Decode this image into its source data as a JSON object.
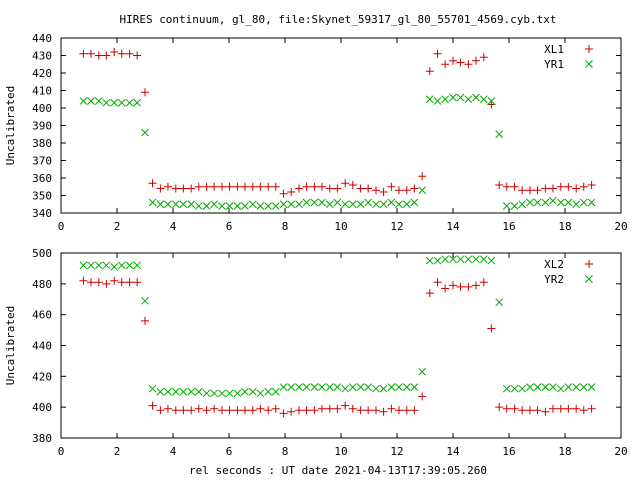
{
  "title": "HIRES continuum, gl_80, file:Skynet_59317_gl_80_55701_4569.cyb.txt",
  "xlabel": "rel seconds : UT date 2021-04-13T17:39:05.260",
  "colors": {
    "red": "#cc0000",
    "green": "#00aa00"
  },
  "chart_data": [
    {
      "type": "scatter",
      "title": "HIRES continuum, gl_80, file:Skynet_59317_gl_80_55701_4569.cyb.txt",
      "ylabel": "Uncalibrated",
      "xlim": [
        0,
        20
      ],
      "ylim": [
        340,
        440
      ],
      "xticks": [
        0,
        2,
        4,
        6,
        8,
        10,
        12,
        14,
        16,
        18,
        20
      ],
      "yticks": [
        340,
        350,
        360,
        370,
        380,
        390,
        400,
        410,
        420,
        430,
        440
      ],
      "legend_position": "top-right",
      "series": [
        {
          "name": "XL1",
          "marker": "+",
          "color": "#cc0000",
          "x": [
            0.8,
            1.07,
            1.35,
            1.62,
            1.9,
            2.17,
            2.45,
            2.72,
            3.0,
            3.27,
            3.55,
            3.82,
            4.1,
            4.37,
            4.65,
            4.92,
            5.2,
            5.47,
            5.75,
            6.02,
            6.3,
            6.57,
            6.85,
            7.12,
            7.4,
            7.67,
            7.95,
            8.22,
            8.5,
            8.77,
            9.05,
            9.32,
            9.6,
            9.87,
            10.15,
            10.42,
            10.7,
            10.97,
            11.25,
            11.52,
            11.8,
            12.07,
            12.35,
            12.62,
            12.9,
            13.17,
            13.45,
            13.72,
            14.0,
            14.27,
            14.55,
            14.82,
            15.1,
            15.37,
            15.65,
            15.92,
            16.2,
            16.47,
            16.75,
            17.02,
            17.3,
            17.57,
            17.85,
            18.12,
            18.4,
            18.67,
            18.95
          ],
          "y": [
            431,
            431,
            430,
            430,
            432,
            431,
            431,
            430,
            409,
            357,
            354,
            355,
            354,
            354,
            354,
            355,
            355,
            355,
            355,
            355,
            355,
            355,
            355,
            355,
            355,
            355,
            351,
            352,
            354,
            355,
            355,
            355,
            354,
            354,
            357,
            356,
            354,
            354,
            353,
            352,
            355,
            353,
            353,
            354,
            361,
            421,
            431,
            425,
            427,
            426,
            425,
            427,
            429,
            402,
            356,
            355,
            355,
            353,
            353,
            353,
            354,
            354,
            355,
            355,
            354,
            355,
            356
          ],
          "x_values_note": "",
          "points": null
        },
        {
          "name": "YR1",
          "marker": "x",
          "color": "#00aa00",
          "x": [
            0.8,
            1.07,
            1.35,
            1.62,
            1.9,
            2.17,
            2.45,
            2.72,
            3.0,
            3.27,
            3.55,
            3.82,
            4.1,
            4.37,
            4.65,
            4.92,
            5.2,
            5.47,
            5.75,
            6.02,
            6.3,
            6.57,
            6.85,
            7.12,
            7.4,
            7.67,
            7.95,
            8.22,
            8.5,
            8.77,
            9.05,
            9.32,
            9.6,
            9.87,
            10.15,
            10.42,
            10.7,
            10.97,
            11.25,
            11.52,
            11.8,
            12.07,
            12.35,
            12.62,
            12.9,
            13.17,
            13.45,
            13.72,
            14.0,
            14.27,
            14.55,
            14.82,
            15.1,
            15.37,
            15.65,
            15.92,
            16.2,
            16.47,
            16.75,
            17.02,
            17.3,
            17.57,
            17.85,
            18.12,
            18.4,
            18.67,
            18.95
          ],
          "y": [
            404,
            404,
            404,
            403,
            403,
            403,
            403,
            403,
            386,
            346,
            345,
            345,
            345,
            345,
            345,
            344,
            344,
            345,
            344,
            344,
            344,
            344,
            345,
            344,
            344,
            344,
            345,
            345,
            345,
            346,
            346,
            346,
            345,
            346,
            345,
            345,
            345,
            346,
            345,
            345,
            346,
            345,
            345,
            346,
            353,
            405,
            404,
            405,
            406,
            406,
            405,
            406,
            405,
            404,
            385,
            344,
            344,
            345,
            346,
            346,
            346,
            347,
            346,
            346,
            345,
            346,
            346
          ]
        }
      ]
    },
    {
      "type": "scatter",
      "ylabel": "Uncalibrated",
      "xlabel": "rel seconds : UT date 2021-04-13T17:39:05.260",
      "xlim": [
        0,
        20
      ],
      "ylim": [
        380,
        500
      ],
      "xticks": [
        0,
        2,
        4,
        6,
        8,
        10,
        12,
        14,
        16,
        18,
        20
      ],
      "yticks": [
        380,
        400,
        420,
        440,
        460,
        480,
        500
      ],
      "legend_position": "top-right",
      "series": [
        {
          "name": "XL2",
          "marker": "+",
          "color": "#cc0000",
          "x": [
            0.8,
            1.07,
            1.35,
            1.62,
            1.9,
            2.17,
            2.45,
            2.72,
            3.0,
            3.27,
            3.55,
            3.82,
            4.1,
            4.37,
            4.65,
            4.92,
            5.2,
            5.47,
            5.75,
            6.02,
            6.3,
            6.57,
            6.85,
            7.12,
            7.4,
            7.67,
            7.95,
            8.22,
            8.5,
            8.77,
            9.05,
            9.32,
            9.6,
            9.87,
            10.15,
            10.42,
            10.7,
            10.97,
            11.25,
            11.52,
            11.8,
            12.07,
            12.35,
            12.62,
            12.9,
            13.17,
            13.45,
            13.72,
            14.0,
            14.27,
            14.55,
            14.82,
            15.1,
            15.37,
            15.65,
            15.92,
            16.2,
            16.47,
            16.75,
            17.02,
            17.3,
            17.57,
            17.85,
            18.12,
            18.4,
            18.67,
            18.95
          ],
          "y": [
            482,
            481,
            481,
            480,
            482,
            481,
            481,
            481,
            456,
            401,
            398,
            399,
            398,
            398,
            398,
            399,
            398,
            399,
            398,
            398,
            398,
            398,
            398,
            399,
            398,
            399,
            396,
            397,
            398,
            398,
            398,
            399,
            399,
            399,
            401,
            399,
            398,
            398,
            398,
            397,
            399,
            398,
            398,
            398,
            407,
            474,
            481,
            477,
            479,
            478,
            478,
            479,
            481,
            451,
            400,
            399,
            399,
            398,
            398,
            398,
            397,
            399,
            399,
            399,
            399,
            398,
            399
          ]
        },
        {
          "name": "YR2",
          "marker": "x",
          "color": "#00aa00",
          "x": [
            0.8,
            1.07,
            1.35,
            1.62,
            1.9,
            2.17,
            2.45,
            2.72,
            3.0,
            3.27,
            3.55,
            3.82,
            4.1,
            4.37,
            4.65,
            4.92,
            5.2,
            5.47,
            5.75,
            6.02,
            6.3,
            6.57,
            6.85,
            7.12,
            7.4,
            7.67,
            7.95,
            8.22,
            8.5,
            8.77,
            9.05,
            9.32,
            9.6,
            9.87,
            10.15,
            10.42,
            10.7,
            10.97,
            11.25,
            11.52,
            11.8,
            12.07,
            12.35,
            12.62,
            12.9,
            13.17,
            13.45,
            13.72,
            14.0,
            14.27,
            14.55,
            14.82,
            15.1,
            15.37,
            15.65,
            15.92,
            16.2,
            16.47,
            16.75,
            17.02,
            17.3,
            17.57,
            17.85,
            18.12,
            18.4,
            18.67,
            18.95
          ],
          "y": [
            492,
            492,
            492,
            492,
            491,
            492,
            492,
            492,
            469,
            412,
            410,
            410,
            410,
            410,
            410,
            410,
            409,
            409,
            409,
            409,
            409,
            410,
            410,
            409,
            410,
            410,
            413,
            413,
            413,
            413,
            413,
            413,
            413,
            413,
            412,
            413,
            413,
            413,
            412,
            412,
            413,
            413,
            413,
            413,
            423,
            495,
            495,
            496,
            496,
            496,
            496,
            496,
            496,
            495,
            468,
            412,
            412,
            412,
            413,
            413,
            413,
            413,
            412,
            413,
            413,
            413,
            413
          ]
        }
      ]
    }
  ]
}
